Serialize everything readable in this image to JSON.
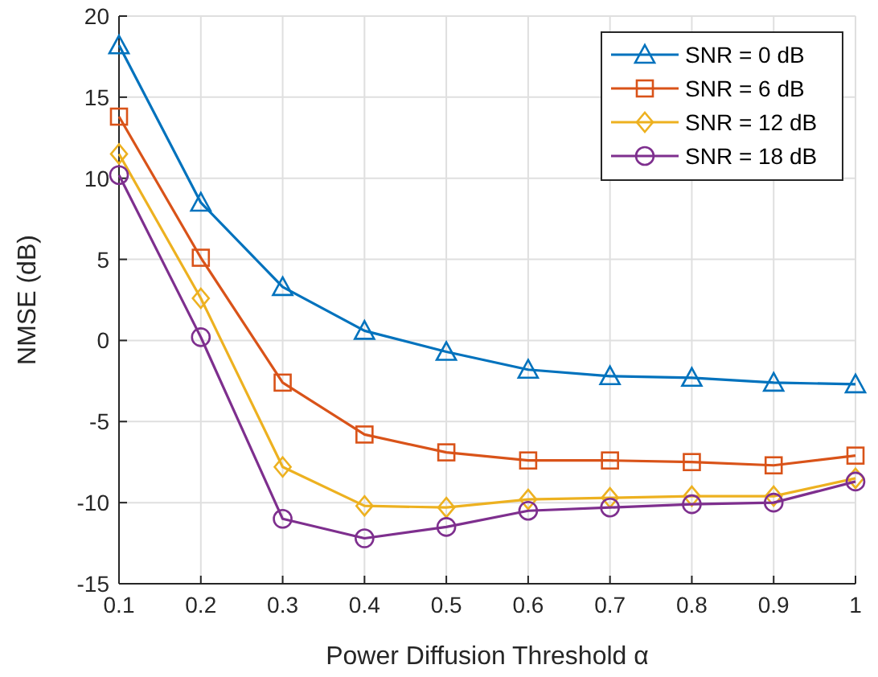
{
  "chart_data": {
    "type": "line",
    "xlabel": "Power Diffusion Threshold α",
    "ylabel": "NMSE (dB)",
    "x": [
      0.1,
      0.2,
      0.3,
      0.4,
      0.5,
      0.6,
      0.7,
      0.8,
      0.9,
      1
    ],
    "series": [
      {
        "name": "SNR = 0 dB",
        "color": "#0072bd",
        "marker": "triangle",
        "values": [
          18.2,
          8.5,
          3.3,
          0.6,
          -0.7,
          -1.8,
          -2.2,
          -2.3,
          -2.6,
          -2.7
        ]
      },
      {
        "name": "SNR = 6 dB",
        "color": "#d95319",
        "marker": "square",
        "values": [
          13.8,
          5.1,
          -2.6,
          -5.8,
          -6.9,
          -7.4,
          -7.4,
          -7.5,
          -7.7,
          -7.1
        ]
      },
      {
        "name": "SNR = 12 dB",
        "color": "#edb120",
        "marker": "diamond",
        "values": [
          11.5,
          2.6,
          -7.8,
          -10.2,
          -10.3,
          -9.8,
          -9.7,
          -9.6,
          -9.6,
          -8.5
        ]
      },
      {
        "name": "SNR = 18 dB",
        "color": "#7e2f8e",
        "marker": "circle",
        "values": [
          10.2,
          0.2,
          -11.0,
          -12.2,
          -11.5,
          -10.5,
          -10.3,
          -10.1,
          -10.0,
          -8.7
        ]
      }
    ],
    "xlim": [
      0.1,
      1
    ],
    "xticks": [
      0.1,
      0.2,
      0.3,
      0.4,
      0.5,
      0.6,
      0.7,
      0.8,
      0.9,
      1
    ],
    "ylim": [
      -15,
      20
    ],
    "yticks": [
      -15,
      -10,
      -5,
      0,
      5,
      10,
      15,
      20
    ],
    "grid": true,
    "legend": "top right",
    "line_style": "solid"
  }
}
